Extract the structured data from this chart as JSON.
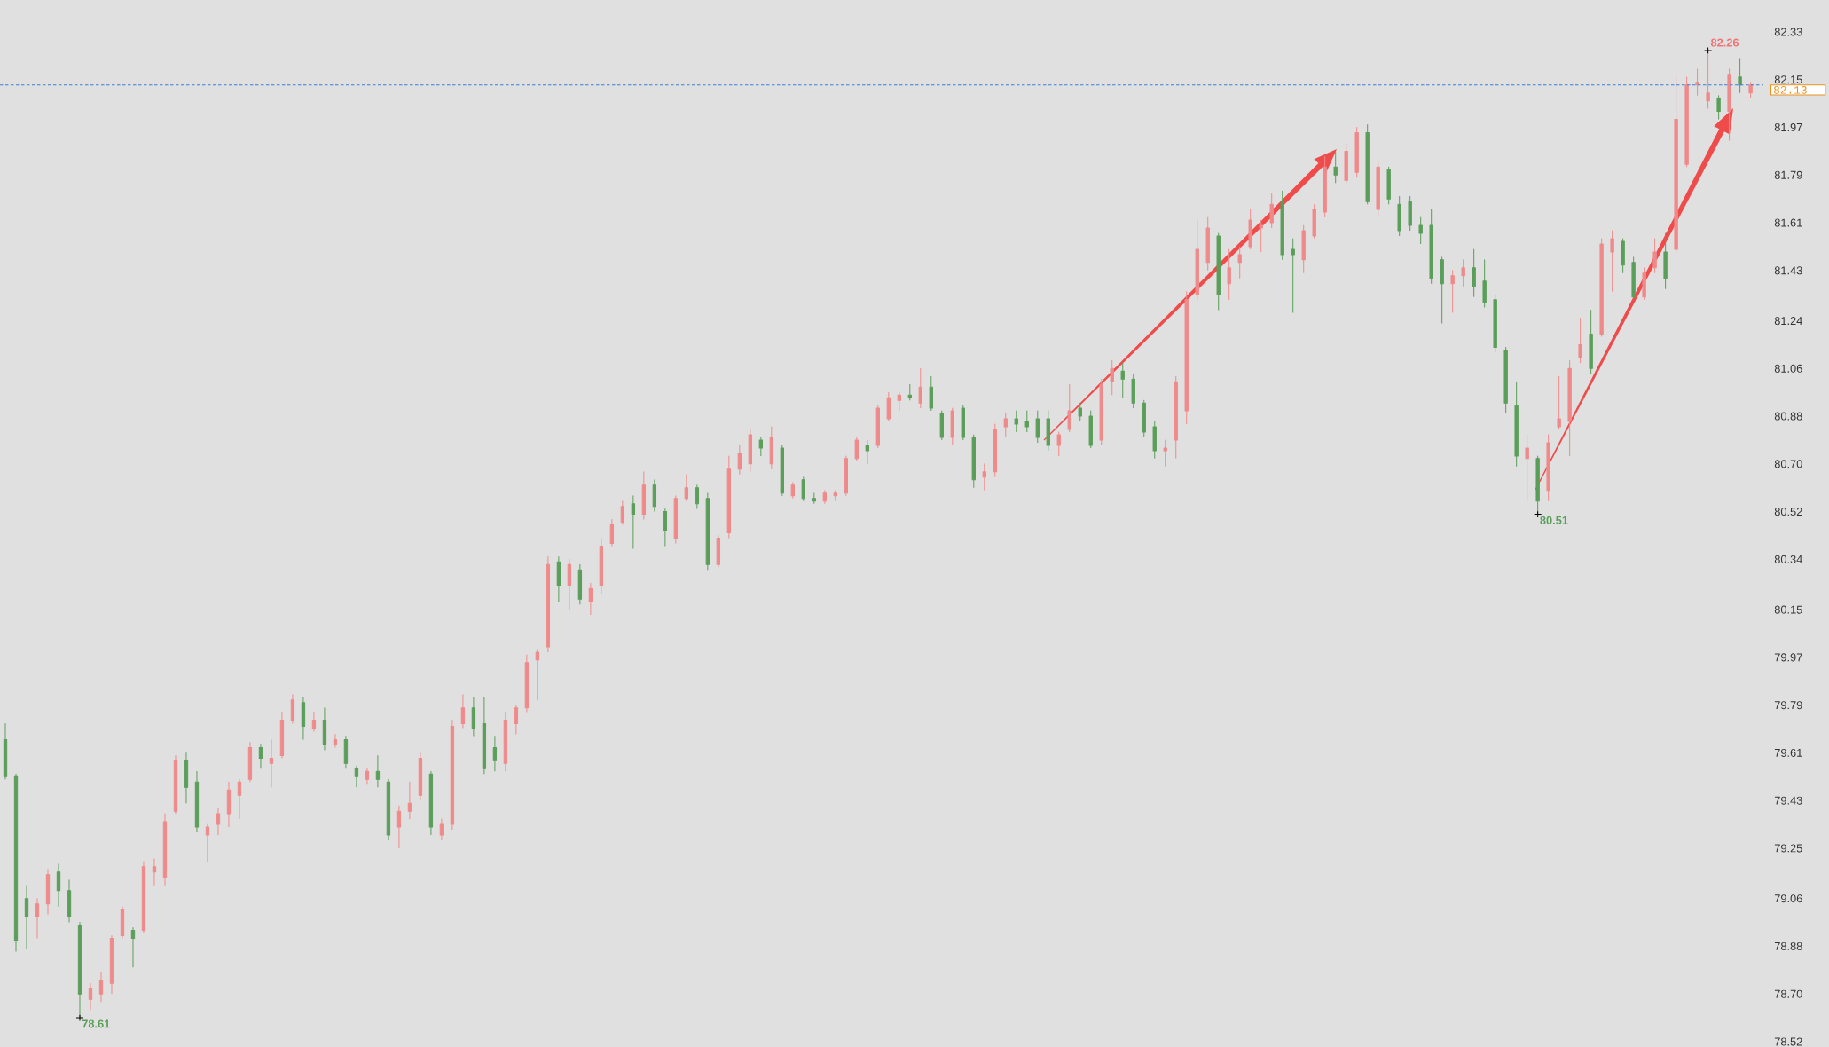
{
  "chart_data": {
    "type": "candlestick",
    "categories": [
      null,
      null,
      null,
      null,
      null,
      null,
      null,
      null,
      null,
      null,
      null,
      null,
      null,
      null,
      null,
      null,
      null,
      null,
      null,
      null,
      null,
      null,
      null,
      null,
      null,
      null,
      null,
      null,
      null,
      null,
      null,
      null,
      null,
      null,
      null,
      null,
      null,
      null,
      null,
      null,
      null,
      null,
      null,
      null,
      null,
      null,
      null,
      null,
      null,
      null,
      null,
      null,
      null,
      null,
      null,
      null,
      null,
      null,
      null,
      null,
      null,
      null,
      null,
      null,
      null,
      null,
      null,
      null,
      null,
      null,
      null,
      null,
      null,
      null,
      null,
      null,
      null,
      null,
      null,
      null,
      null,
      null,
      null,
      null,
      null,
      null,
      null,
      null,
      null,
      null,
      null,
      null,
      null,
      null,
      null,
      null,
      null,
      null,
      null,
      null,
      null,
      null,
      null,
      null,
      null,
      null,
      null,
      null,
      null,
      null,
      null,
      null,
      null,
      null,
      null,
      null,
      null,
      null,
      null,
      null,
      null,
      null,
      null,
      null,
      null,
      null,
      null,
      null,
      null,
      null,
      null,
      null,
      null,
      null,
      null,
      null,
      null,
      null,
      null,
      null,
      null,
      null,
      null,
      null,
      null,
      null,
      null,
      null,
      null,
      null,
      null,
      null,
      null,
      null,
      null,
      null,
      null,
      null,
      null,
      null,
      null,
      null,
      null,
      null,
      null
    ],
    "ohlc": [
      [
        79.66,
        79.72,
        79.51,
        79.52
      ],
      [
        79.52,
        79.53,
        78.86,
        78.9
      ],
      [
        79.06,
        79.11,
        78.87,
        78.99
      ],
      [
        78.99,
        79.06,
        78.91,
        79.04
      ],
      [
        79.04,
        79.17,
        79.0,
        79.15
      ],
      [
        79.16,
        79.19,
        79.03,
        79.09
      ],
      [
        79.09,
        79.13,
        78.97,
        78.99
      ],
      [
        78.96,
        78.97,
        78.61,
        78.7
      ],
      [
        78.68,
        78.74,
        78.64,
        78.72
      ],
      [
        78.7,
        78.78,
        78.67,
        78.75
      ],
      [
        78.74,
        78.92,
        78.7,
        78.91
      ],
      [
        78.92,
        79.03,
        78.91,
        79.02
      ],
      [
        78.94,
        78.95,
        78.8,
        78.91
      ],
      [
        78.94,
        79.2,
        78.93,
        79.18
      ],
      [
        79.16,
        79.21,
        79.11,
        79.18
      ],
      [
        79.14,
        79.38,
        79.11,
        79.35
      ],
      [
        79.39,
        79.6,
        79.38,
        79.58
      ],
      [
        79.58,
        79.61,
        79.42,
        79.48
      ],
      [
        79.5,
        79.54,
        79.31,
        79.33
      ],
      [
        79.3,
        79.34,
        79.2,
        79.33
      ],
      [
        79.34,
        79.4,
        79.3,
        79.38
      ],
      [
        79.38,
        79.5,
        79.33,
        79.47
      ],
      [
        79.45,
        79.51,
        79.36,
        79.5
      ],
      [
        79.51,
        79.65,
        79.5,
        79.63
      ],
      [
        79.63,
        79.64,
        79.55,
        79.59
      ],
      [
        79.57,
        79.66,
        79.48,
        79.59
      ],
      [
        79.6,
        79.76,
        79.59,
        79.73
      ],
      [
        79.73,
        79.83,
        79.72,
        79.81
      ],
      [
        79.8,
        79.82,
        79.66,
        79.71
      ],
      [
        79.7,
        79.76,
        79.69,
        79.73
      ],
      [
        79.73,
        79.78,
        79.62,
        79.64
      ],
      [
        79.64,
        79.68,
        79.63,
        79.66
      ],
      [
        79.66,
        79.67,
        79.55,
        79.57
      ],
      [
        79.55,
        79.56,
        79.48,
        79.52
      ],
      [
        79.51,
        79.55,
        79.49,
        79.54
      ],
      [
        79.54,
        79.6,
        79.48,
        79.51
      ],
      [
        79.5,
        79.51,
        79.28,
        79.3
      ],
      [
        79.33,
        79.41,
        79.25,
        79.39
      ],
      [
        79.39,
        79.5,
        79.36,
        79.42
      ],
      [
        79.45,
        79.61,
        79.43,
        79.59
      ],
      [
        79.53,
        79.54,
        79.3,
        79.33
      ],
      [
        79.3,
        79.36,
        79.28,
        79.34
      ],
      [
        79.34,
        79.73,
        79.32,
        79.71
      ],
      [
        79.72,
        79.83,
        79.7,
        79.78
      ],
      [
        79.78,
        79.82,
        79.67,
        79.7
      ],
      [
        79.72,
        79.82,
        79.53,
        79.55
      ],
      [
        79.63,
        79.67,
        79.54,
        79.58
      ],
      [
        79.57,
        79.76,
        79.54,
        79.73
      ],
      [
        79.72,
        79.79,
        79.68,
        79.78
      ],
      [
        79.78,
        79.98,
        79.76,
        79.95
      ],
      [
        79.96,
        80.0,
        79.81,
        79.99
      ],
      [
        80.01,
        80.35,
        79.99,
        80.32
      ],
      [
        80.33,
        80.35,
        80.18,
        80.24
      ],
      [
        80.24,
        80.34,
        80.15,
        80.32
      ],
      [
        80.3,
        80.32,
        80.17,
        80.19
      ],
      [
        80.18,
        80.25,
        80.13,
        80.23
      ],
      [
        80.24,
        80.42,
        80.21,
        80.39
      ],
      [
        80.4,
        80.49,
        80.39,
        80.47
      ],
      [
        80.48,
        80.56,
        80.47,
        80.54
      ],
      [
        80.55,
        80.58,
        80.38,
        80.51
      ],
      [
        80.51,
        80.67,
        80.49,
        80.62
      ],
      [
        80.62,
        80.64,
        80.52,
        80.54
      ],
      [
        80.52,
        80.53,
        80.39,
        80.45
      ],
      [
        80.42,
        80.58,
        80.4,
        80.57
      ],
      [
        80.57,
        80.66,
        80.56,
        80.61
      ],
      [
        80.61,
        80.62,
        80.53,
        80.55
      ],
      [
        80.57,
        80.59,
        80.3,
        80.32
      ],
      [
        80.32,
        80.43,
        80.31,
        80.42
      ],
      [
        80.44,
        80.73,
        80.42,
        80.68
      ],
      [
        80.68,
        80.77,
        80.66,
        80.74
      ],
      [
        80.7,
        80.83,
        80.67,
        80.81
      ],
      [
        80.79,
        80.8,
        80.73,
        80.76
      ],
      [
        80.7,
        80.84,
        80.68,
        80.8
      ],
      [
        80.76,
        80.77,
        80.58,
        80.59
      ],
      [
        80.58,
        80.63,
        80.57,
        80.62
      ],
      [
        80.64,
        80.65,
        80.56,
        80.57
      ],
      [
        80.57,
        80.59,
        80.55,
        80.56
      ],
      [
        80.56,
        80.6,
        80.55,
        80.59
      ],
      [
        80.58,
        80.6,
        80.56,
        80.59
      ],
      [
        80.59,
        80.73,
        80.58,
        80.72
      ],
      [
        80.72,
        80.8,
        80.71,
        80.79
      ],
      [
        80.77,
        80.79,
        80.7,
        80.75
      ],
      [
        80.77,
        80.92,
        80.76,
        80.91
      ],
      [
        80.87,
        80.97,
        80.86,
        80.95
      ],
      [
        80.94,
        80.97,
        80.9,
        80.96
      ],
      [
        80.96,
        81.0,
        80.94,
        80.95
      ],
      [
        80.93,
        81.06,
        80.91,
        80.99
      ],
      [
        80.99,
        81.03,
        80.9,
        80.91
      ],
      [
        80.89,
        80.9,
        80.79,
        80.8
      ],
      [
        80.8,
        80.91,
        80.77,
        80.9
      ],
      [
        80.91,
        80.92,
        80.79,
        80.8
      ],
      [
        80.8,
        80.81,
        80.61,
        80.64
      ],
      [
        80.65,
        80.7,
        80.6,
        80.67
      ],
      [
        80.67,
        80.85,
        80.65,
        80.83
      ],
      [
        80.84,
        80.89,
        80.8,
        80.87
      ],
      [
        80.87,
        80.9,
        80.82,
        80.85
      ],
      [
        80.86,
        80.9,
        80.82,
        80.84
      ],
      [
        80.87,
        80.9,
        80.78,
        80.8
      ],
      [
        80.87,
        80.9,
        80.75,
        80.77
      ],
      [
        80.77,
        80.82,
        80.73,
        80.81
      ],
      [
        80.83,
        81.0,
        80.82,
        80.9
      ],
      [
        80.91,
        80.93,
        80.86,
        80.88
      ],
      [
        80.88,
        80.9,
        80.76,
        80.77
      ],
      [
        80.79,
        81.02,
        80.77,
        81.0
      ],
      [
        81.01,
        81.09,
        80.96,
        81.06
      ],
      [
        81.05,
        81.08,
        80.95,
        81.02
      ],
      [
        81.02,
        81.04,
        80.91,
        80.93
      ],
      [
        80.93,
        80.94,
        80.8,
        80.82
      ],
      [
        80.84,
        80.86,
        80.72,
        80.75
      ],
      [
        80.75,
        80.79,
        80.69,
        80.76
      ],
      [
        80.79,
        81.03,
        80.72,
        81.01
      ],
      [
        80.9,
        81.35,
        80.85,
        81.32
      ],
      [
        81.34,
        81.62,
        81.32,
        81.51
      ],
      [
        81.46,
        81.63,
        81.43,
        81.59
      ],
      [
        81.56,
        81.57,
        81.28,
        81.34
      ],
      [
        81.38,
        81.51,
        81.32,
        81.44
      ],
      [
        81.46,
        81.52,
        81.4,
        81.49
      ],
      [
        81.52,
        81.66,
        81.51,
        81.62
      ],
      [
        81.59,
        81.62,
        81.5,
        81.6
      ],
      [
        81.61,
        81.72,
        81.59,
        81.68
      ],
      [
        81.69,
        81.73,
        81.47,
        81.49
      ],
      [
        81.51,
        81.55,
        81.27,
        81.49
      ],
      [
        81.47,
        81.6,
        81.42,
        81.58
      ],
      [
        81.56,
        81.68,
        81.55,
        81.66
      ],
      [
        81.65,
        81.86,
        81.63,
        81.82
      ],
      [
        81.82,
        81.88,
        81.76,
        81.79
      ],
      [
        81.77,
        81.91,
        81.76,
        81.88
      ],
      [
        81.8,
        81.97,
        81.78,
        81.95
      ],
      [
        81.95,
        81.98,
        81.68,
        81.69
      ],
      [
        81.66,
        81.84,
        81.63,
        81.82
      ],
      [
        81.81,
        81.82,
        81.68,
        81.7
      ],
      [
        81.68,
        81.71,
        81.56,
        81.58
      ],
      [
        81.69,
        81.71,
        81.58,
        81.6
      ],
      [
        81.6,
        81.63,
        81.53,
        81.57
      ],
      [
        81.6,
        81.66,
        81.38,
        81.4
      ],
      [
        81.47,
        81.48,
        81.23,
        81.38
      ],
      [
        81.38,
        81.43,
        81.27,
        81.41
      ],
      [
        81.41,
        81.47,
        81.37,
        81.44
      ],
      [
        81.44,
        81.51,
        81.33,
        81.37
      ],
      [
        81.39,
        81.47,
        81.29,
        81.31
      ],
      [
        81.32,
        81.34,
        81.12,
        81.14
      ],
      [
        81.13,
        81.14,
        80.89,
        80.93
      ],
      [
        80.92,
        81.01,
        80.69,
        80.73
      ],
      [
        80.72,
        80.81,
        80.56,
        80.76
      ],
      [
        80.72,
        80.73,
        80.51,
        80.56
      ],
      [
        80.6,
        80.81,
        80.56,
        80.78
      ],
      [
        80.84,
        81.03,
        80.83,
        80.87
      ],
      [
        80.86,
        81.09,
        80.73,
        81.06
      ],
      [
        81.1,
        81.25,
        81.08,
        81.15
      ],
      [
        81.19,
        81.28,
        81.04,
        81.06
      ],
      [
        81.19,
        81.55,
        81.18,
        81.53
      ],
      [
        81.5,
        81.58,
        81.35,
        81.55
      ],
      [
        81.54,
        81.55,
        81.42,
        81.45
      ],
      [
        81.46,
        81.48,
        81.32,
        81.33
      ],
      [
        81.33,
        81.44,
        81.32,
        81.42
      ],
      [
        81.44,
        81.55,
        81.42,
        81.5
      ],
      [
        81.5,
        81.57,
        81.36,
        81.4
      ],
      [
        81.51,
        82.17,
        81.5,
        82.0
      ],
      [
        81.83,
        82.16,
        81.82,
        82.13
      ],
      [
        82.13,
        82.19,
        82.09,
        82.14
      ],
      [
        82.07,
        82.26,
        82.04,
        82.1
      ],
      [
        82.08,
        82.09,
        82.0,
        82.03
      ],
      [
        82.03,
        82.19,
        81.92,
        82.17
      ],
      [
        82.16,
        82.23,
        82.1,
        82.13
      ],
      [
        82.1,
        82.14,
        82.08,
        82.13
      ]
    ],
    "colors": [
      "#5a9e5a",
      "#5a9e5a",
      "#5a9e5a",
      "#f08a8a",
      "#f08a8a",
      "#5a9e5a",
      "#5a9e5a",
      "#5a9e5a",
      "#f08a8a",
      "#f08a8a",
      "#f08a8a",
      "#f08a8a",
      "#5a9e5a",
      "#f08a8a",
      "#f08a8a",
      "#f08a8a",
      "#f08a8a",
      "#5a9e5a",
      "#5a9e5a",
      "#f08a8a",
      "#f08a8a",
      "#f08a8a",
      "#f08a8a",
      "#f08a8a",
      "#5a9e5a",
      "#f08a8a",
      "#f08a8a",
      "#f08a8a",
      "#5a9e5a",
      "#f08a8a",
      "#5a9e5a",
      "#f08a8a",
      "#5a9e5a",
      "#5a9e5a",
      "#f08a8a",
      "#5a9e5a",
      "#5a9e5a",
      "#f08a8a",
      "#f08a8a",
      "#f08a8a",
      "#5a9e5a",
      "#f08a8a",
      "#f08a8a",
      "#f08a8a",
      "#5a9e5a",
      "#5a9e5a",
      "#5a9e5a",
      "#f08a8a",
      "#f08a8a",
      "#f08a8a",
      "#f08a8a",
      "#f08a8a",
      "#5a9e5a",
      "#f08a8a",
      "#5a9e5a",
      "#f08a8a",
      "#f08a8a",
      "#f08a8a",
      "#f08a8a",
      "#5a9e5a",
      "#f08a8a",
      "#5a9e5a",
      "#5a9e5a",
      "#f08a8a",
      "#f08a8a",
      "#5a9e5a",
      "#5a9e5a",
      "#f08a8a",
      "#f08a8a",
      "#f08a8a",
      "#f08a8a",
      "#5a9e5a",
      "#f08a8a",
      "#5a9e5a",
      "#f08a8a",
      "#5a9e5a",
      "#5a9e5a",
      "#f08a8a",
      "#f08a8a",
      "#f08a8a",
      "#f08a8a",
      "#5a9e5a",
      "#f08a8a",
      "#f08a8a",
      "#f08a8a",
      "#5a9e5a",
      "#f08a8a",
      "#5a9e5a",
      "#5a9e5a",
      "#f08a8a",
      "#5a9e5a",
      "#5a9e5a",
      "#f08a8a",
      "#f08a8a",
      "#f08a8a",
      "#5a9e5a",
      "#5a9e5a",
      "#5a9e5a",
      "#5a9e5a",
      "#f08a8a",
      "#f08a8a",
      "#5a9e5a",
      "#5a9e5a",
      "#f08a8a",
      "#f08a8a",
      "#5a9e5a",
      "#5a9e5a",
      "#5a9e5a",
      "#5a9e5a",
      "#f08a8a",
      "#f08a8a",
      "#f08a8a",
      "#f08a8a",
      "#f08a8a",
      "#5a9e5a",
      "#f08a8a",
      "#f08a8a",
      "#f08a8a",
      "#f08a8a",
      "#f08a8a",
      "#5a9e5a",
      "#5a9e5a",
      "#f08a8a",
      "#f08a8a",
      "#f08a8a",
      "#5a9e5a",
      "#f08a8a",
      "#f08a8a",
      "#5a9e5a",
      "#f08a8a",
      "#5a9e5a",
      "#5a9e5a",
      "#5a9e5a",
      "#5a9e5a",
      "#5a9e5a",
      "#5a9e5a",
      "#f08a8a",
      "#f08a8a",
      "#5a9e5a",
      "#5a9e5a",
      "#5a9e5a",
      "#5a9e5a",
      "#5a9e5a",
      "#f08a8a",
      "#5a9e5a",
      "#f08a8a",
      "#f08a8a",
      "#f08a8a",
      "#f08a8a",
      "#5a9e5a",
      "#f08a8a",
      "#f08a8a",
      "#5a9e5a",
      "#5a9e5a",
      "#f08a8a",
      "#f08a8a",
      "#5a9e5a",
      "#f08a8a",
      "#f08a8a",
      "#f08a8a",
      "#f08a8a",
      "#5a9e5a",
      "#f08a8a",
      "#5a9e5a",
      "#f08a8a"
    ],
    "ylim": [
      78.52,
      82.33
    ],
    "yticks": [
      78.52,
      {
        "value": 78.7,
        "label": "78.70"
      },
      78.88,
      79.06,
      79.25,
      79.43,
      79.61,
      79.79,
      79.97,
      80.15,
      80.34,
      80.52,
      {
        "value": 80.7,
        "label": "80.70"
      },
      80.88,
      81.06,
      81.24,
      81.43,
      81.61,
      81.79,
      81.97,
      82.15,
      82.33
    ],
    "tick_labels": "y",
    "ref_lines": [
      {
        "axis": "y",
        "value": 82.13,
        "label": "82.13",
        "color": "#3b7dd8",
        "line_style": "dashed"
      }
    ],
    "annotations": [
      "78.61",
      "80.51",
      "82.26"
    ]
  }
}
